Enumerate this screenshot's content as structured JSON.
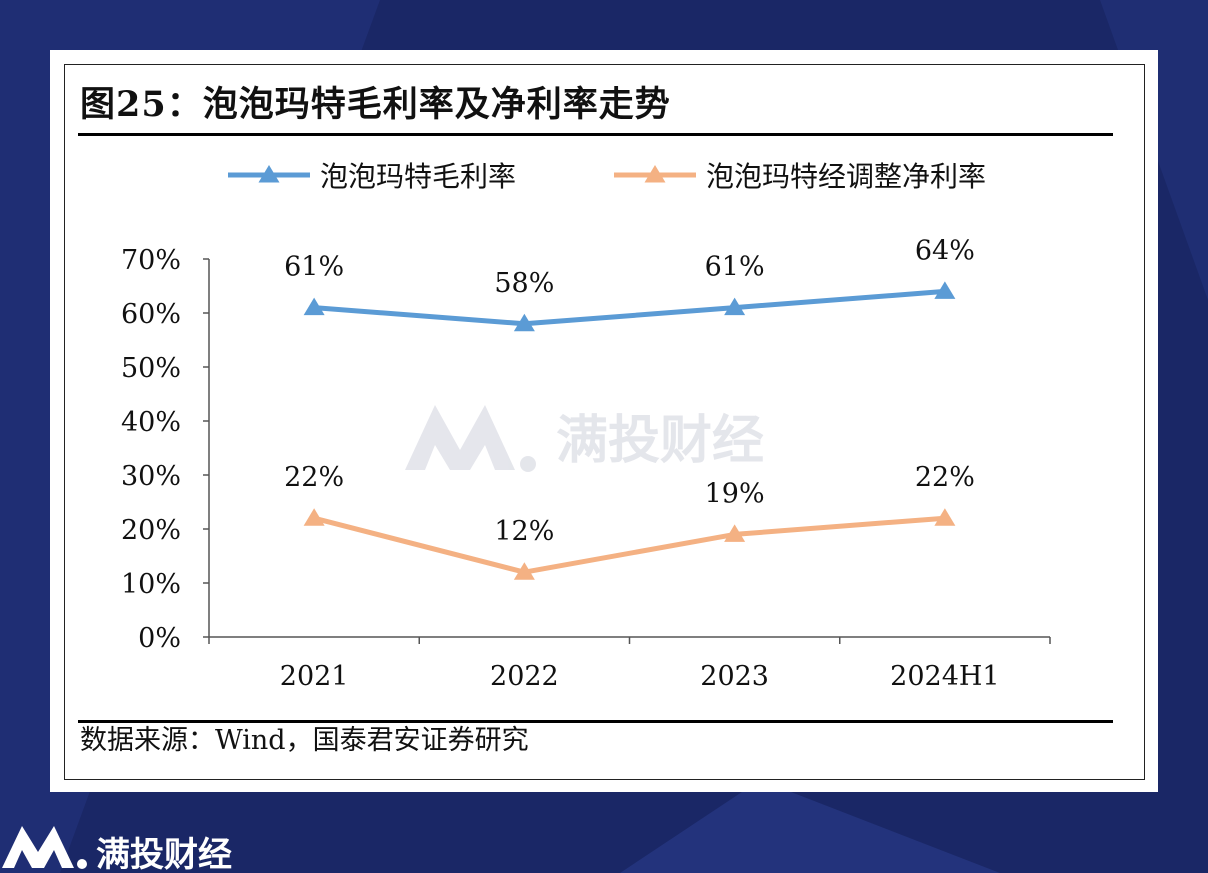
{
  "figure": {
    "title": "图25：泡泡玛特毛利率及净利率走势",
    "source": "数据来源：Wind，国泰君安证券研究"
  },
  "watermark": {
    "text": "满投财经",
    "icon": "brand-logo-icon"
  },
  "footer": {
    "brand": "满投财经",
    "icon": "brand-logo-icon"
  },
  "colors": {
    "background": "#1a2766",
    "series_blue": "#5b9bd5",
    "series_orange": "#f4b183"
  },
  "chart_data": {
    "type": "line",
    "categories": [
      "2021",
      "2022",
      "2023",
      "2024H1"
    ],
    "series": [
      {
        "name": "泡泡玛特毛利率",
        "values": [
          61,
          58,
          61,
          64
        ],
        "labels": [
          "61%",
          "58%",
          "61%",
          "64%"
        ],
        "color": "#5b9bd5",
        "marker": "triangle"
      },
      {
        "name": "泡泡玛特经调整净利率",
        "values": [
          22,
          12,
          19,
          22
        ],
        "labels": [
          "22%",
          "12%",
          "19%",
          "22%"
        ],
        "color": "#f4b183",
        "marker": "triangle"
      }
    ],
    "y_ticks": [
      "0%",
      "10%",
      "20%",
      "30%",
      "40%",
      "50%",
      "60%",
      "70%"
    ],
    "ylim": [
      0,
      70
    ],
    "grid": false,
    "legend_position": "top"
  }
}
